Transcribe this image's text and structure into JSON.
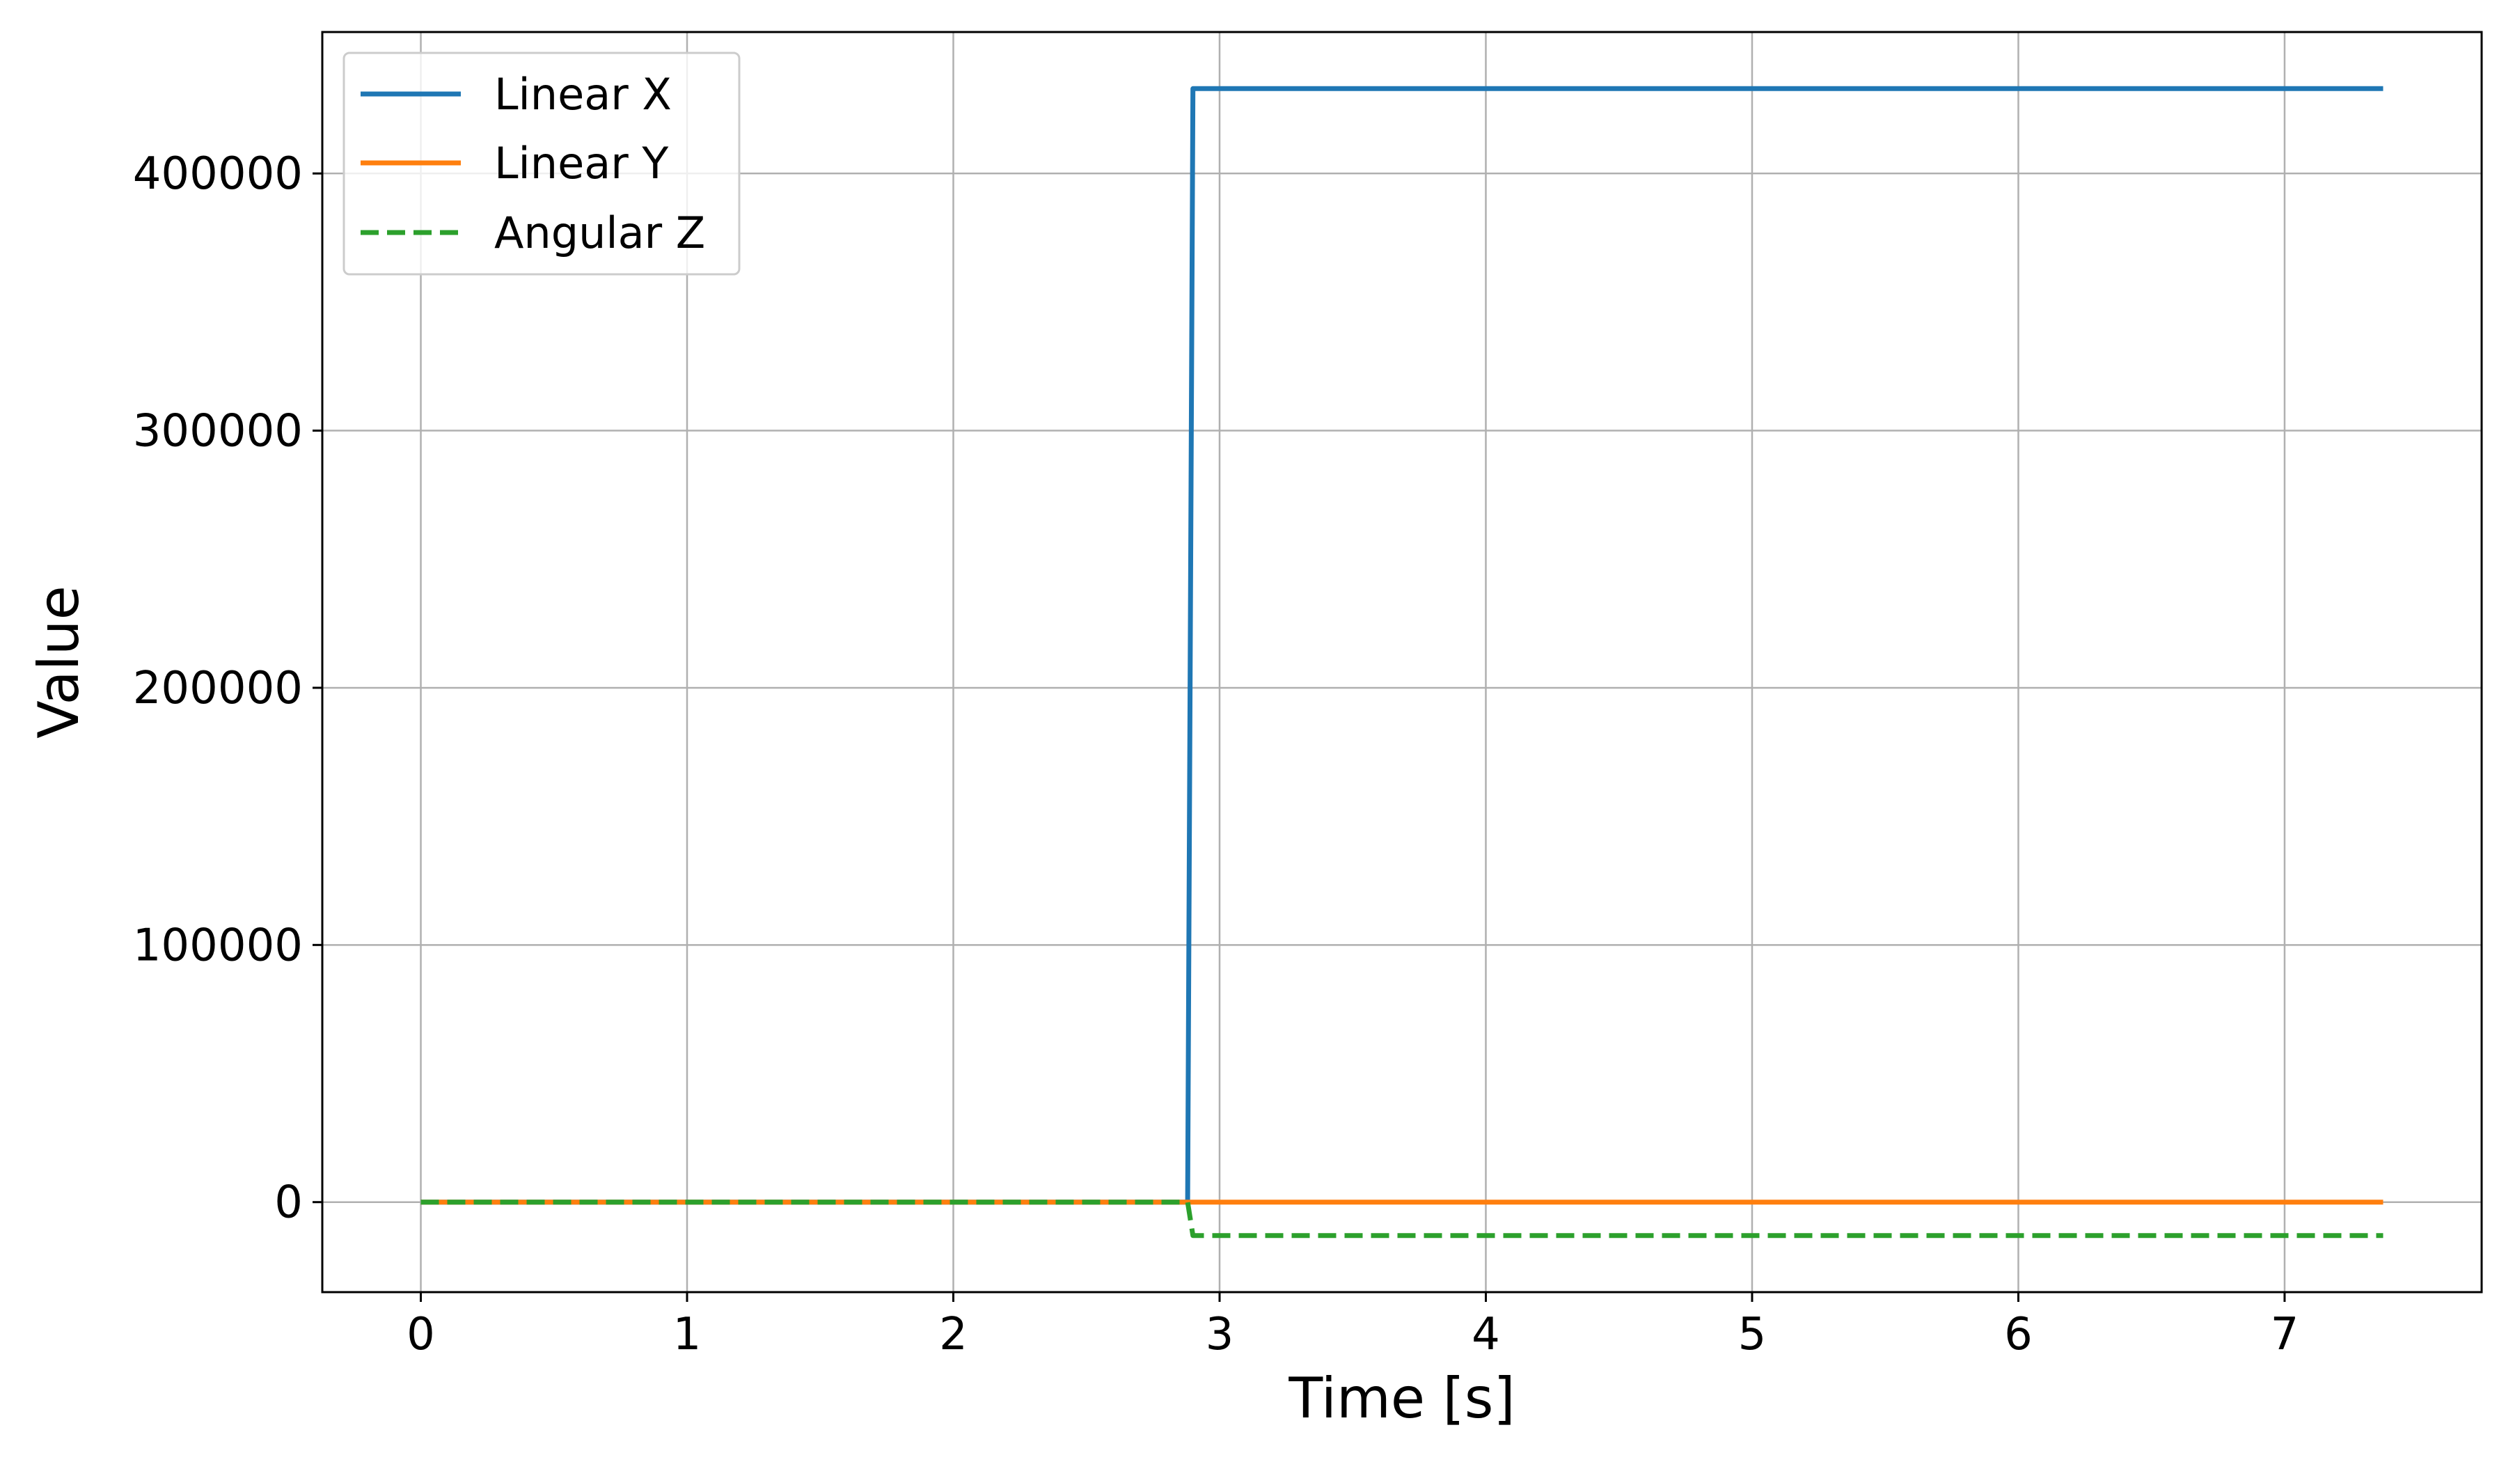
{
  "chart_data": {
    "type": "line",
    "title": "",
    "xlabel": "Time [s]",
    "ylabel": "Value",
    "xlim": [
      -0.37,
      7.74
    ],
    "ylim": [
      -35000,
      455000
    ],
    "xticks": [
      0,
      1,
      2,
      3,
      4,
      5,
      6,
      7
    ],
    "yticks": [
      0,
      100000,
      200000,
      300000,
      400000
    ],
    "xtick_labels": [
      "0",
      "1",
      "2",
      "3",
      "4",
      "5",
      "6",
      "7"
    ],
    "ytick_labels": [
      "0",
      "100000",
      "200000",
      "300000",
      "400000"
    ],
    "grid": true,
    "legend_position": "top-left",
    "series": [
      {
        "name": "Linear X",
        "color": "#1f77b4",
        "style": "solid",
        "x": [
          0,
          2.88,
          2.9,
          7.37
        ],
        "y": [
          0,
          0,
          433000,
          433000
        ]
      },
      {
        "name": "Linear Y",
        "color": "#ff7f0e",
        "style": "solid",
        "x": [
          0,
          2.88,
          2.9,
          7.37
        ],
        "y": [
          0,
          0,
          0,
          0
        ]
      },
      {
        "name": "Angular Z",
        "color": "#2ca02c",
        "style": "dashed",
        "x": [
          0,
          2.88,
          2.9,
          7.37
        ],
        "y": [
          0,
          0,
          -13000,
          -13000
        ]
      }
    ]
  }
}
